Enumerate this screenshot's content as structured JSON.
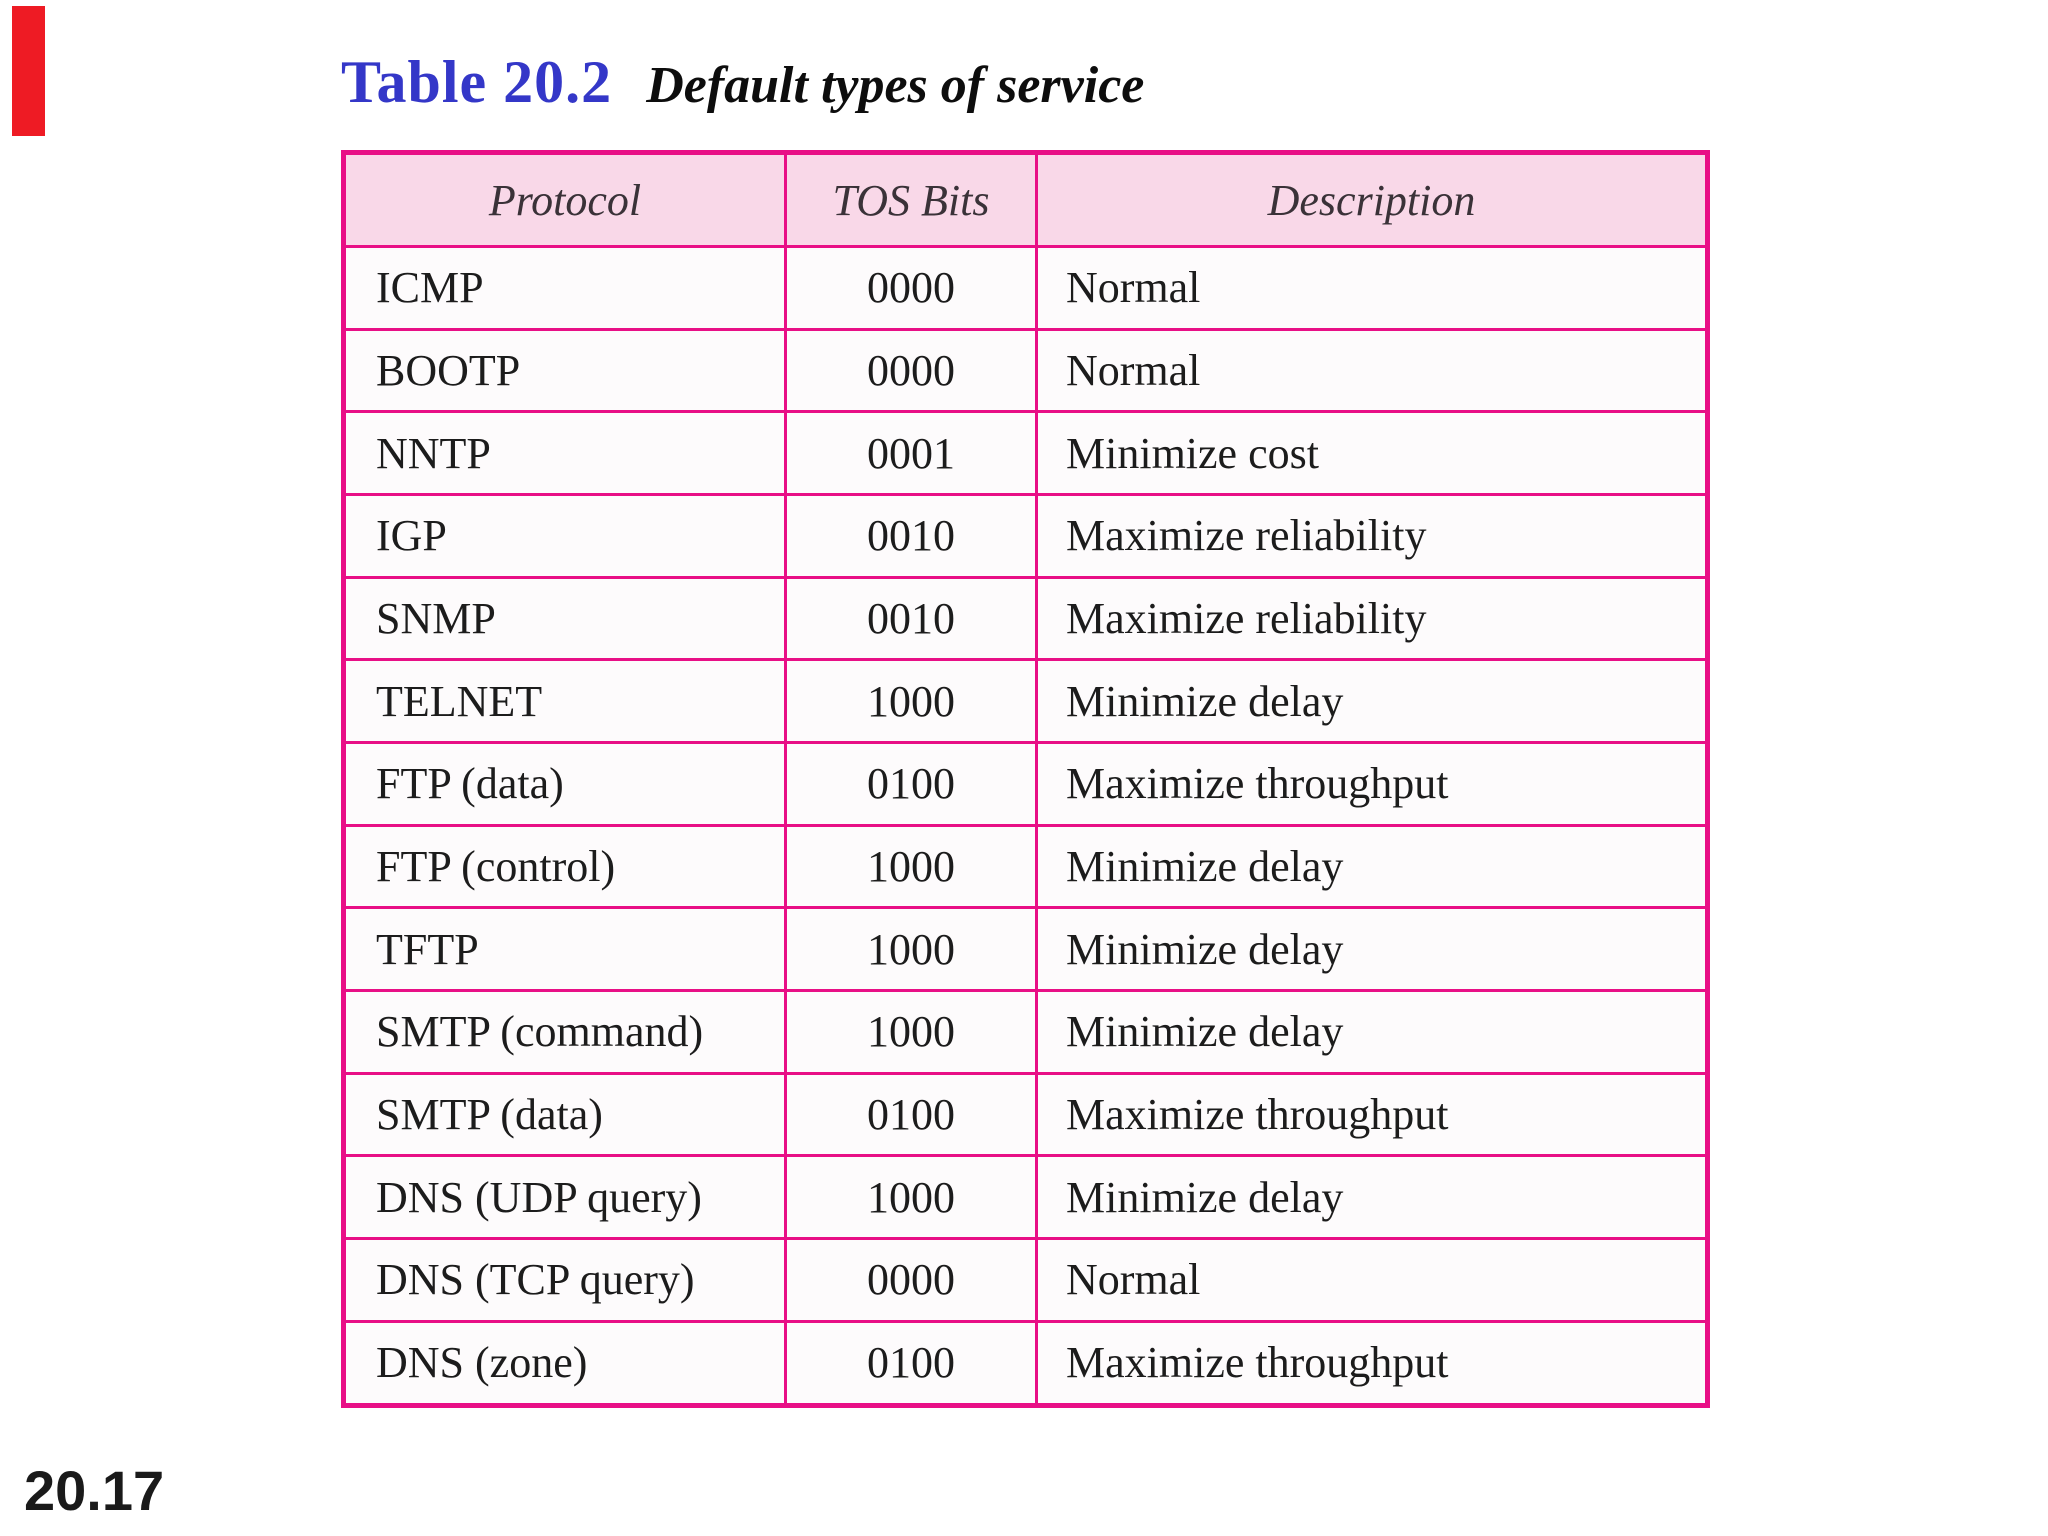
{
  "slide": {
    "accent_bar_color": "#ee1b24",
    "page_number": "20.17"
  },
  "title": {
    "table_number": "Table 20.2",
    "caption": "Default types of service",
    "number_color": "#3437c8"
  },
  "table": {
    "border_color": "#e80f86",
    "header_bg_color": "#f9d8e8",
    "row_bg_color": "#fdfbfc",
    "columns": [
      "Protocol",
      "TOS Bits",
      "Description"
    ],
    "rows": [
      {
        "protocol": "ICMP",
        "tos_bits": "0000",
        "description": "Normal"
      },
      {
        "protocol": "BOOTP",
        "tos_bits": "0000",
        "description": "Normal"
      },
      {
        "protocol": "NNTP",
        "tos_bits": "0001",
        "description": "Minimize cost"
      },
      {
        "protocol": "IGP",
        "tos_bits": "0010",
        "description": "Maximize reliability"
      },
      {
        "protocol": "SNMP",
        "tos_bits": "0010",
        "description": "Maximize reliability"
      },
      {
        "protocol": "TELNET",
        "tos_bits": "1000",
        "description": "Minimize delay"
      },
      {
        "protocol": "FTP (data)",
        "tos_bits": "0100",
        "description": "Maximize throughput"
      },
      {
        "protocol": "FTP (control)",
        "tos_bits": "1000",
        "description": "Minimize delay"
      },
      {
        "protocol": "TFTP",
        "tos_bits": "1000",
        "description": "Minimize delay"
      },
      {
        "protocol": "SMTP (command)",
        "tos_bits": "1000",
        "description": "Minimize delay"
      },
      {
        "protocol": "SMTP (data)",
        "tos_bits": "0100",
        "description": "Maximize throughput"
      },
      {
        "protocol": "DNS (UDP query)",
        "tos_bits": "1000",
        "description": "Minimize delay"
      },
      {
        "protocol": "DNS (TCP query)",
        "tos_bits": "0000",
        "description": "Normal"
      },
      {
        "protocol": "DNS (zone)",
        "tos_bits": "0100",
        "description": "Maximize throughput"
      }
    ]
  }
}
